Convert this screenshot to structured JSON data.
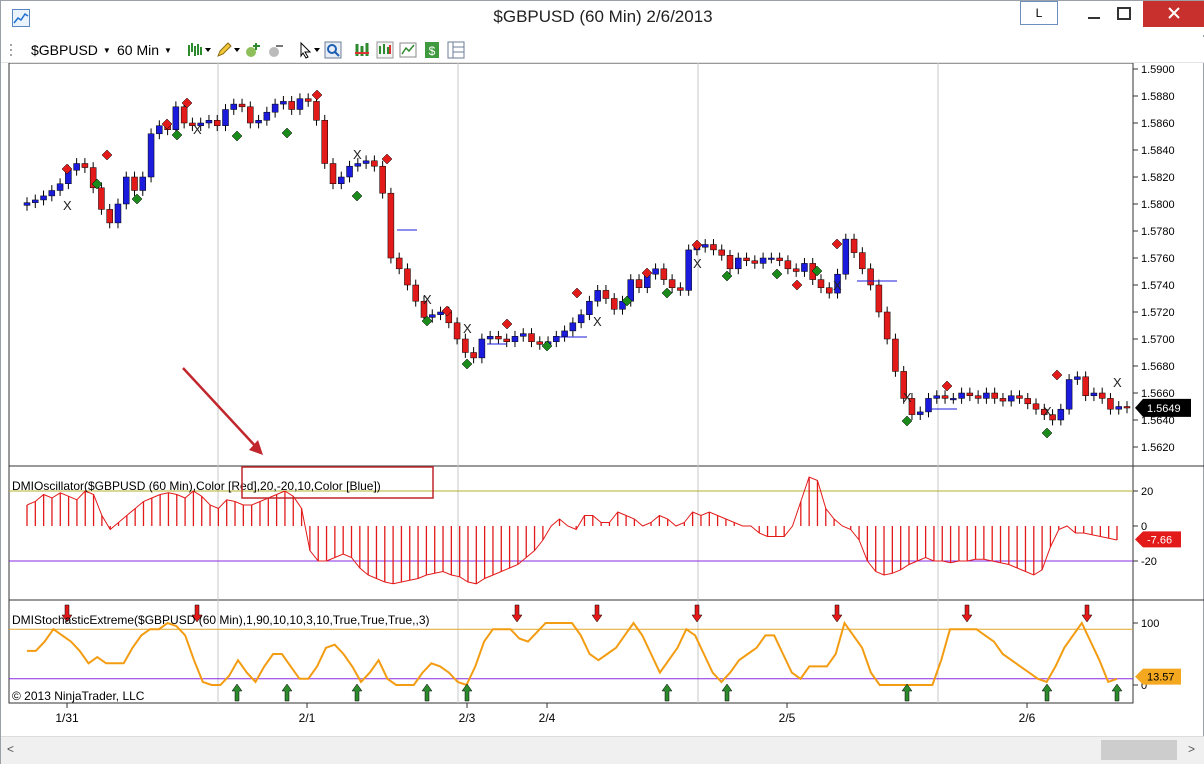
{
  "window": {
    "title": "$GBPUSD (60 Min)  2/6/2013",
    "layout_button": "L"
  },
  "toolbar": {
    "instrument": "$GBPUSD",
    "interval": "60 Min",
    "icons": [
      "bar-type-icon",
      "drawing-pencil-icon",
      "add-indicator-icon",
      "remove-indicator-icon",
      "cursor-icon",
      "zoom-icon",
      "chart-style-icon",
      "strategy-icon",
      "chart-properties-icon",
      "order-icon",
      "panels-icon"
    ]
  },
  "price_panel": {
    "axis_labels": [
      "1.5900",
      "1.5880",
      "1.5860",
      "1.5840",
      "1.5820",
      "1.5800",
      "1.5780",
      "1.5760",
      "1.5740",
      "1.5720",
      "1.5700",
      "1.5680",
      "1.5660",
      "1.5640",
      "1.5620"
    ],
    "last_price": "1.5649",
    "colors": {
      "up": "#1b1bdd",
      "down": "#e31a1a",
      "sell_marker": "#e31a1a",
      "buy_marker": "#1a8a1a"
    }
  },
  "dmi_panel": {
    "label": "DMIOscillator($GBPUSD  (60  Min),Color [Red],20,-20,10,Color [Blue])",
    "axis_labels": [
      "20",
      "0",
      "-20"
    ],
    "current_value": "-7.66",
    "color": "#e31a1a"
  },
  "stoch_panel": {
    "label": "DMIStochasticExtreme($GBPUSD  (60  Min),1,90,10,10,3,10,True,True,True,,3)",
    "axis_labels": [
      "100",
      "0"
    ],
    "current_value": "13.57",
    "copyright": "© 2013 NinjaTrader, LLC",
    "color": "#f39c12"
  },
  "x_axis": {
    "labels": [
      "1/31",
      "2/1",
      "2/3",
      "2/4",
      "2/5",
      "2/6"
    ]
  }
}
